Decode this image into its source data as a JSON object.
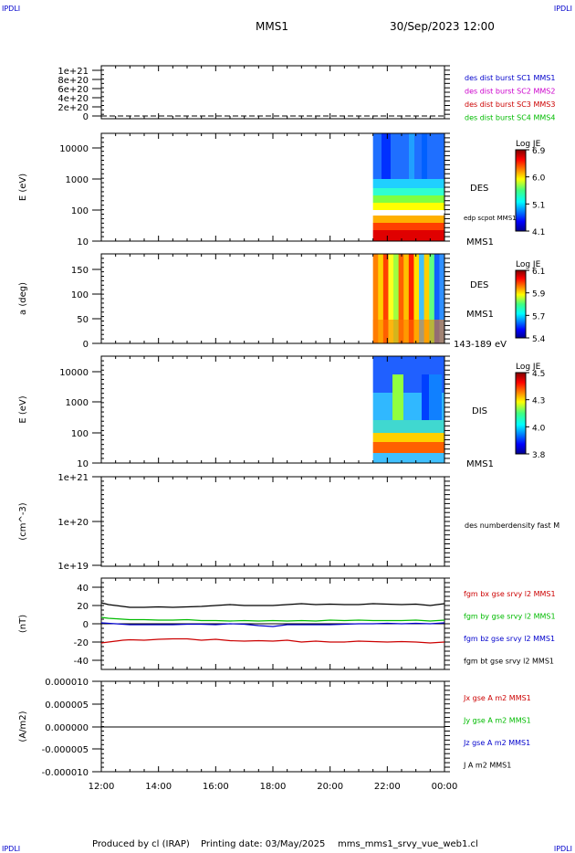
{
  "header": {
    "corner_label": "IPDLI",
    "spacecraft": "MMS1",
    "datetime": "30/Sep/2023 12:00"
  },
  "footer": {
    "credit": "Produced by cl (IRAP)",
    "printing_date": "Printing date: 03/May/2025",
    "filename": "mms_mms1_srvy_vue_web1.cl"
  },
  "colors": {
    "mms1": "#0000cc",
    "mms2": "#cc00cc",
    "mms3": "#cc0000",
    "mms4": "#00bb00",
    "bx": "#cc0000",
    "by": "#00bb00",
    "bz": "#0000cc",
    "bt": "#000000"
  },
  "chart_data": [
    {
      "id": "burst",
      "type": "line",
      "yticks": [
        "0",
        "2e+20",
        "4e+20",
        "6e+20",
        "8e+20",
        "1e+21"
      ],
      "legend": [
        {
          "label": "des dist burst SC1 MMS1",
          "color": "#0000cc"
        },
        {
          "label": "des dist burst SC2 MMS2",
          "color": "#cc00cc"
        },
        {
          "label": "des dist burst SC3 MMS3",
          "color": "#cc0000"
        },
        {
          "label": "des dist burst SC4 MMS4",
          "color": "#00bb00"
        }
      ]
    },
    {
      "id": "des_energy",
      "type": "heatmap",
      "ylabel": "E (eV)",
      "yscale": "log",
      "ylim": [
        10,
        30000
      ],
      "yticks": [
        "10",
        "100",
        "1000",
        "10000"
      ],
      "colorbar": {
        "title": "Log JE",
        "ticks": [
          "6.9",
          "6.0",
          "5.1",
          "4.1"
        ]
      },
      "right_labels": [
        "DES",
        "edp scpot MMS1",
        "MMS1"
      ],
      "data_start": "21:30",
      "data_end": "00:00"
    },
    {
      "id": "des_pitch",
      "type": "heatmap",
      "ylabel": "a (deg)",
      "ylim": [
        0,
        180
      ],
      "yticks": [
        "0",
        "50",
        "100",
        "150"
      ],
      "colorbar": {
        "title": "Log JE",
        "ticks": [
          "6.1",
          "5.9",
          "5.7",
          "5.4"
        ]
      },
      "right_labels": [
        "DES",
        "MMS1",
        "143-189 eV"
      ],
      "data_start": "21:30",
      "data_end": "00:00"
    },
    {
      "id": "dis_energy",
      "type": "heatmap",
      "ylabel": "E (eV)",
      "yscale": "log",
      "ylim": [
        10,
        30000
      ],
      "yticks": [
        "10",
        "100",
        "1000",
        "10000"
      ],
      "colorbar": {
        "title": "Log JE",
        "ticks": [
          "4.5",
          "4.3",
          "4.0",
          "3.8"
        ]
      },
      "right_labels": [
        "DIS",
        "MMS1"
      ],
      "data_start": "21:30",
      "data_end": "00:00"
    },
    {
      "id": "density",
      "type": "line",
      "ylabel": "(cm^-3)",
      "yscale": "log",
      "yticks": [
        "1e+19",
        "1e+20",
        "1e+21"
      ],
      "legend": [
        {
          "label": "des numberdensity fast M",
          "color": "#000000"
        }
      ]
    },
    {
      "id": "fgm",
      "type": "line",
      "ylabel": "(nT)",
      "ylim": [
        -50,
        50
      ],
      "yticks": [
        "-40",
        "-20",
        "0",
        "20",
        "40"
      ],
      "x": [
        0,
        0.25,
        0.5,
        0.75,
        1,
        1.5,
        2,
        2.5,
        3,
        3.5,
        4,
        4.5,
        5,
        5.5,
        6,
        6.5,
        7,
        7.5,
        8,
        8.5,
        9,
        9.5,
        10,
        10.5,
        11,
        11.5,
        12
      ],
      "series": [
        {
          "name": "fgm bx gse srvy l2 MMS1",
          "color": "#cc0000",
          "values": [
            -21,
            -20,
            -19,
            -18,
            -17.5,
            -18,
            -17,
            -16.5,
            -16.5,
            -18,
            -17,
            -18.5,
            -19,
            -18.5,
            -19,
            -18,
            -20,
            -19,
            -20,
            -20,
            -19,
            -19.5,
            -20,
            -19.5,
            -20,
            -21,
            -20
          ]
        },
        {
          "name": "fgm by gse srvy l2 MMS1",
          "color": "#00bb00",
          "values": [
            7,
            6,
            5.5,
            5,
            4.5,
            4.5,
            4,
            4,
            4.5,
            3.5,
            3.5,
            3,
            3.5,
            3,
            3.5,
            3,
            3.5,
            3,
            4,
            3.5,
            4,
            3.5,
            3.5,
            3.5,
            4,
            3,
            4
          ]
        },
        {
          "name": "fgm bz gse srvy l2 MMS1",
          "color": "#0000cc",
          "values": [
            1,
            0.5,
            0,
            -0.5,
            -1,
            -1,
            -1,
            -1,
            -0.5,
            -0.5,
            -1,
            0,
            -0.5,
            -2,
            -3,
            -1,
            -1,
            -1,
            -1,
            -0.5,
            0,
            0,
            0.5,
            0,
            0.5,
            0,
            1
          ]
        },
        {
          "name": "fgm bt gse srvy l2 MMS1",
          "color": "#000000",
          "values": [
            23,
            21,
            20,
            19,
            18,
            18,
            18.5,
            18,
            18.5,
            19,
            20,
            21,
            20,
            20,
            20,
            21,
            22,
            21,
            21.5,
            21,
            21,
            22,
            21.5,
            21,
            21.5,
            20,
            22
          ]
        }
      ]
    },
    {
      "id": "current",
      "type": "line",
      "ylabel": "(A/m2)",
      "ylim": [
        -1e-05,
        1e-05
      ],
      "yticks": [
        "-0.000010",
        "-0.000005",
        "0.000000",
        "0.000005",
        "0.000010"
      ],
      "legend": [
        {
          "label": "Jx gse A m2 MMS1",
          "color": "#cc0000"
        },
        {
          "label": "Jy gse A m2 MMS1",
          "color": "#00bb00"
        },
        {
          "label": "Jz gse A m2 MMS1",
          "color": "#0000cc"
        },
        {
          "label": "J A m2 MMS1",
          "color": "#000000"
        }
      ]
    }
  ],
  "xaxis": {
    "ticks": [
      "12:00",
      "14:00",
      "16:00",
      "18:00",
      "20:00",
      "22:00",
      "00:00"
    ]
  }
}
